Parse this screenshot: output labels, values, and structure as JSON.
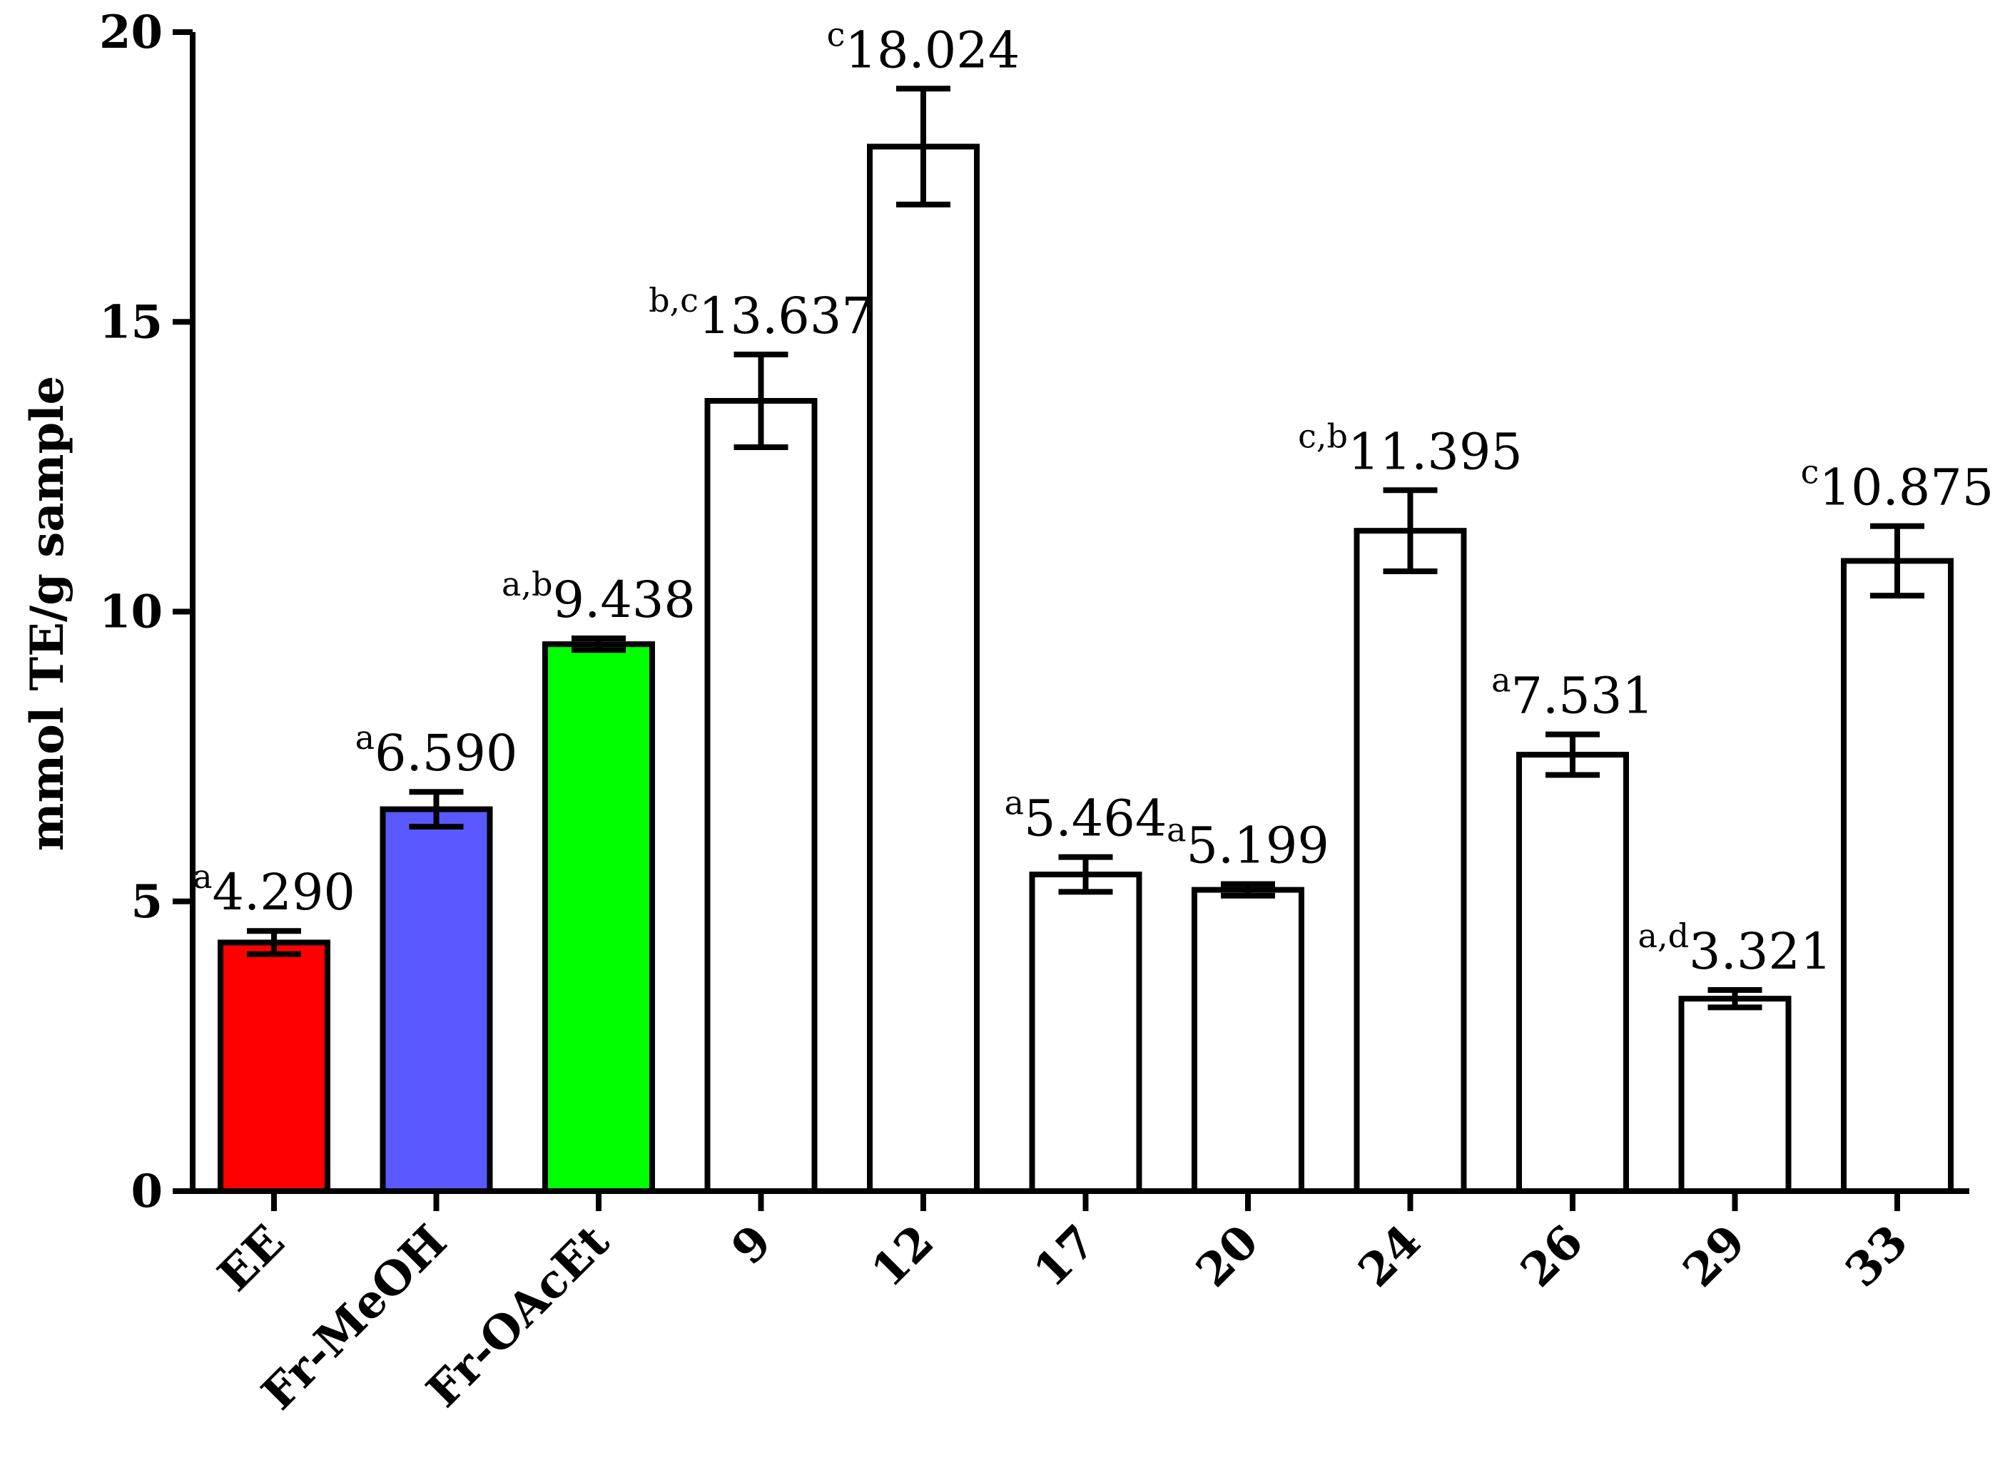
{
  "chart_data": {
    "type": "bar",
    "ylabel": "mmol TE/g sample",
    "xlabel": "",
    "ylim": [
      0,
      20
    ],
    "yticks": [
      "0",
      "5",
      "10",
      "15",
      "20"
    ],
    "categories": [
      "EE",
      "Fr-MeOH",
      "Fr-OAcEt",
      "9",
      "12",
      "17",
      "20",
      "24",
      "26",
      "29",
      "33"
    ],
    "values": [
      4.29,
      6.59,
      9.438,
      13.637,
      18.024,
      5.464,
      5.199,
      11.395,
      7.531,
      3.321,
      10.875
    ],
    "errors": [
      0.2,
      0.3,
      0.1,
      0.8,
      1.0,
      0.3,
      0.1,
      0.7,
      0.35,
      0.15,
      0.6
    ],
    "value_labels": [
      "4.290",
      "6.590",
      "9.438",
      "13.637",
      "18.024",
      "5.464",
      "5.199",
      "11.395",
      "7.531",
      "3.321",
      "10.875"
    ],
    "letters": [
      "a",
      "a",
      "a,b",
      "b,c",
      "c",
      "a",
      "a",
      "c,b",
      "a",
      "a,d",
      "c"
    ],
    "bar_colors": [
      "#ff0000",
      "#5959ff",
      "#00ff00",
      "#ffffff",
      "#ffffff",
      "#ffffff",
      "#ffffff",
      "#ffffff",
      "#ffffff",
      "#ffffff",
      "#ffffff"
    ],
    "grid": false,
    "legend": "none"
  }
}
